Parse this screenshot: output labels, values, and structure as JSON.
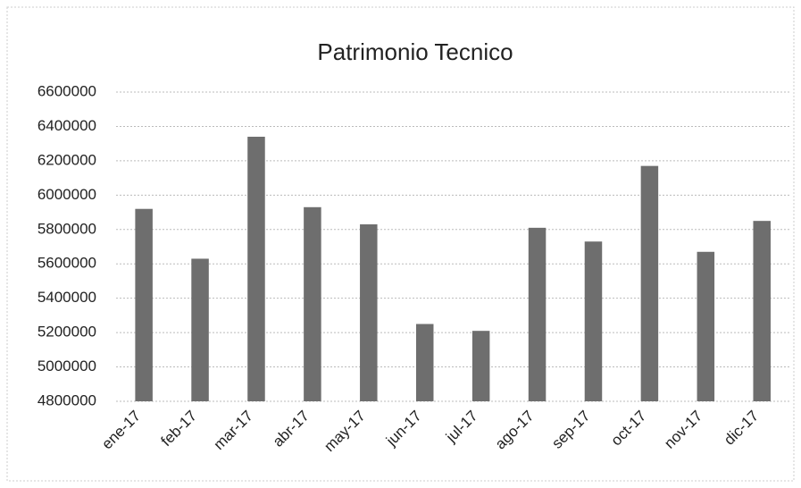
{
  "chart_data": {
    "type": "bar",
    "title": "Patrimonio Tecnico",
    "categories": [
      "ene-17",
      "feb-17",
      "mar-17",
      "abr-17",
      "may-17",
      "jun-17",
      "jul-17",
      "ago-17",
      "sep-17",
      "oct-17",
      "nov-17",
      "dic-17"
    ],
    "values": [
      5920000,
      5630000,
      6340000,
      5930000,
      5830000,
      5250000,
      5210000,
      5810000,
      5730000,
      6170000,
      5670000,
      5850000
    ],
    "color": "#6e6e6e",
    "ylim": [
      4800000,
      6600000
    ],
    "yticks": [
      4800000,
      5000000,
      5200000,
      5400000,
      5600000,
      5800000,
      6000000,
      6200000,
      6400000,
      6600000
    ],
    "grid": true
  }
}
